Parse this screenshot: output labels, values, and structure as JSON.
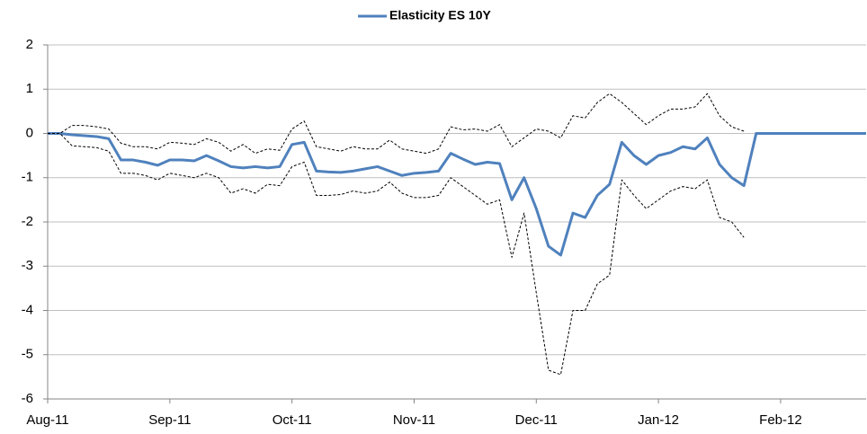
{
  "chart_data": {
    "type": "line",
    "legend": "top",
    "grid": true,
    "ylim": [
      -6,
      2
    ],
    "yticks": [
      -6,
      -5,
      -4,
      -3,
      -2,
      -1,
      0,
      1,
      2
    ],
    "categories": [
      "Aug-11",
      null,
      null,
      null,
      null,
      null,
      null,
      null,
      null,
      null,
      "Sep-11",
      null,
      null,
      null,
      null,
      null,
      null,
      null,
      null,
      null,
      "Oct-11",
      null,
      null,
      null,
      null,
      null,
      null,
      null,
      null,
      null,
      "Nov-11",
      null,
      null,
      null,
      null,
      null,
      null,
      null,
      null,
      null,
      "Dec-11",
      null,
      null,
      null,
      null,
      null,
      null,
      null,
      null,
      null,
      "Jan-12",
      null,
      null,
      null,
      null,
      null,
      null,
      null,
      null,
      null,
      "Feb-12",
      null,
      null,
      null,
      null,
      null,
      null,
      null
    ],
    "series": [
      {
        "name": "Elasticity ES 10Y",
        "color": "#4f81bd",
        "values": [
          0,
          0,
          -0.03,
          -0.05,
          -0.07,
          -0.12,
          -0.6,
          -0.6,
          -0.65,
          -0.72,
          -0.6,
          -0.6,
          -0.62,
          -0.5,
          -0.62,
          -0.75,
          -0.78,
          -0.75,
          -0.78,
          -0.75,
          -0.25,
          -0.2,
          -0.85,
          -0.87,
          -0.88,
          -0.85,
          -0.8,
          -0.75,
          -0.85,
          -0.95,
          -0.9,
          -0.88,
          -0.85,
          -0.45,
          -0.58,
          -0.7,
          -0.65,
          -0.68,
          -1.5,
          -1.0,
          -1.7,
          -2.55,
          -2.75,
          -1.8,
          -1.9,
          -1.4,
          -1.15,
          -0.2,
          -0.5,
          -0.7,
          -0.5,
          -0.43,
          -0.3,
          -0.35,
          -0.1,
          -0.7,
          -1.0,
          -1.18,
          0,
          0,
          0,
          0,
          0,
          0,
          0,
          0,
          0,
          0
        ]
      },
      {
        "color": "#000000",
        "dash": true,
        "values": [
          0,
          0,
          0.18,
          0.18,
          0.15,
          0.1,
          -0.22,
          -0.3,
          -0.3,
          -0.35,
          -0.2,
          -0.22,
          -0.25,
          -0.12,
          -0.2,
          -0.4,
          -0.25,
          -0.45,
          -0.35,
          -0.38,
          0.1,
          0.28,
          -0.3,
          -0.35,
          -0.4,
          -0.3,
          -0.35,
          -0.35,
          -0.15,
          -0.35,
          -0.4,
          -0.45,
          -0.35,
          0.15,
          0.08,
          0.1,
          0.05,
          0.2,
          -0.3,
          -0.1,
          0.1,
          0.05,
          -0.1,
          0.4,
          0.35,
          0.7,
          0.9,
          0.7,
          0.45,
          0.2,
          0.4,
          0.55,
          0.55,
          0.6,
          0.9,
          0.4,
          0.15,
          0.05,
          null,
          null,
          null,
          null,
          null,
          null,
          null,
          null,
          null,
          null
        ]
      },
      {
        "color": "#000000",
        "dash": true,
        "values": [
          0,
          0,
          -0.28,
          -0.3,
          -0.32,
          -0.4,
          -0.9,
          -0.9,
          -0.95,
          -1.05,
          -0.9,
          -0.95,
          -1.0,
          -0.9,
          -1.0,
          -1.35,
          -1.25,
          -1.35,
          -1.15,
          -1.18,
          -0.75,
          -0.65,
          -1.4,
          -1.4,
          -1.38,
          -1.3,
          -1.35,
          -1.3,
          -1.1,
          -1.35,
          -1.45,
          -1.45,
          -1.4,
          -1.0,
          -1.2,
          -1.4,
          -1.6,
          -1.5,
          -2.8,
          -1.8,
          -3.6,
          -5.35,
          -5.45,
          -4.0,
          -4.0,
          -3.4,
          -3.2,
          -1.05,
          -1.4,
          -1.7,
          -1.5,
          -1.3,
          -1.2,
          -1.25,
          -1.05,
          -1.9,
          -2.0,
          -2.35,
          null,
          null,
          null,
          null,
          null,
          null,
          null,
          null,
          null,
          null
        ]
      }
    ]
  }
}
